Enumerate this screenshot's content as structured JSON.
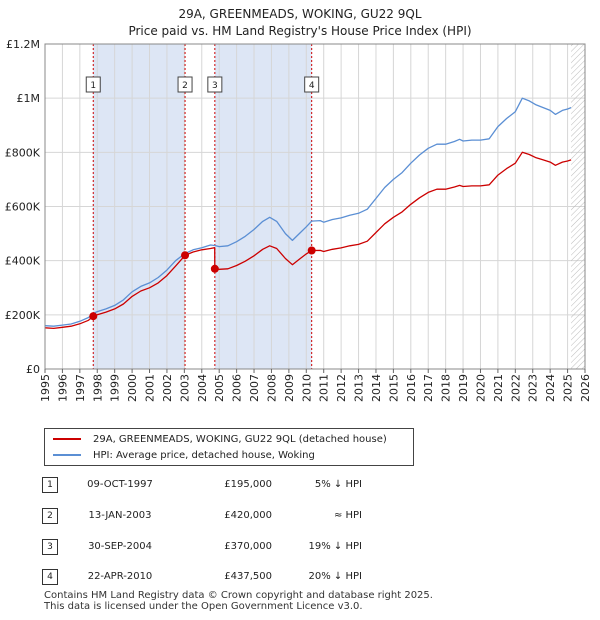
{
  "title_line1": "29A, GREENMEADS, WOKING, GU22 9QL",
  "title_line2": "Price paid vs. HM Land Registry's House Price Index (HPI)",
  "colors": {
    "property": "#cc0000",
    "hpi": "#5b8fd4",
    "shade": "#dde6f5",
    "marker": "#cc0000"
  },
  "chart_data": {
    "type": "line",
    "ylim": [
      0,
      1200000
    ],
    "xlim": [
      1995.0,
      2026.0
    ],
    "y_ticks": [
      {
        "value": 0,
        "label": "£0"
      },
      {
        "value": 200000,
        "label": "£200K"
      },
      {
        "value": 400000,
        "label": "£400K"
      },
      {
        "value": 600000,
        "label": "£600K"
      },
      {
        "value": 800000,
        "label": "£800K"
      },
      {
        "value": 1000000,
        "label": "£1M"
      },
      {
        "value": 1200000,
        "label": "£1.2M"
      }
    ],
    "x_ticks": [
      "1995",
      "1996",
      "1997",
      "1998",
      "1999",
      "2000",
      "2001",
      "2002",
      "2003",
      "2004",
      "2005",
      "2006",
      "2007",
      "2008",
      "2009",
      "2010",
      "2011",
      "2012",
      "2013",
      "2014",
      "2015",
      "2016",
      "2017",
      "2018",
      "2019",
      "2020",
      "2021",
      "2022",
      "2023",
      "2024",
      "2025",
      "2026"
    ],
    "shaded_periods": [
      [
        1997.77,
        2003.04
      ],
      [
        2004.75,
        2010.31
      ]
    ],
    "forecast_start": 2025.2,
    "series": [
      {
        "name": "HPI: Average price, detached house, Woking",
        "points": [
          [
            1995.0,
            160000
          ],
          [
            1995.5,
            158000
          ],
          [
            1996.0,
            162000
          ],
          [
            1996.5,
            166000
          ],
          [
            1997.0,
            176000
          ],
          [
            1997.5,
            190000
          ],
          [
            1997.77,
            205000
          ],
          [
            1998.0,
            212000
          ],
          [
            1998.5,
            222000
          ],
          [
            1999.0,
            235000
          ],
          [
            1999.5,
            255000
          ],
          [
            2000.0,
            285000
          ],
          [
            2000.5,
            305000
          ],
          [
            2001.0,
            318000
          ],
          [
            2001.5,
            338000
          ],
          [
            2002.0,
            365000
          ],
          [
            2002.5,
            400000
          ],
          [
            2003.0,
            425000
          ],
          [
            2003.5,
            440000
          ],
          [
            2004.0,
            448000
          ],
          [
            2004.5,
            458000
          ],
          [
            2004.75,
            456000
          ],
          [
            2005.0,
            452000
          ],
          [
            2005.5,
            455000
          ],
          [
            2006.0,
            470000
          ],
          [
            2006.5,
            490000
          ],
          [
            2007.0,
            515000
          ],
          [
            2007.5,
            545000
          ],
          [
            2007.9,
            560000
          ],
          [
            2008.3,
            545000
          ],
          [
            2008.8,
            500000
          ],
          [
            2009.2,
            475000
          ],
          [
            2009.6,
            500000
          ],
          [
            2010.0,
            525000
          ],
          [
            2010.31,
            546000
          ],
          [
            2010.8,
            548000
          ],
          [
            2011.0,
            542000
          ],
          [
            2011.5,
            552000
          ],
          [
            2012.0,
            558000
          ],
          [
            2012.5,
            568000
          ],
          [
            2013.0,
            575000
          ],
          [
            2013.5,
            590000
          ],
          [
            2014.0,
            630000
          ],
          [
            2014.5,
            670000
          ],
          [
            2015.0,
            700000
          ],
          [
            2015.5,
            725000
          ],
          [
            2016.0,
            760000
          ],
          [
            2016.5,
            790000
          ],
          [
            2017.0,
            815000
          ],
          [
            2017.5,
            830000
          ],
          [
            2018.0,
            830000
          ],
          [
            2018.5,
            840000
          ],
          [
            2018.8,
            848000
          ],
          [
            2019.0,
            842000
          ],
          [
            2019.5,
            845000
          ],
          [
            2020.0,
            845000
          ],
          [
            2020.5,
            850000
          ],
          [
            2021.0,
            895000
          ],
          [
            2021.5,
            925000
          ],
          [
            2022.0,
            950000
          ],
          [
            2022.4,
            1000000
          ],
          [
            2022.8,
            990000
          ],
          [
            2023.2,
            975000
          ],
          [
            2023.6,
            965000
          ],
          [
            2024.0,
            955000
          ],
          [
            2024.3,
            940000
          ],
          [
            2024.7,
            955000
          ],
          [
            2025.0,
            960000
          ],
          [
            2025.2,
            965000
          ]
        ]
      },
      {
        "name": "29A, GREENMEADS, WOKING, GU22 9QL (detached house)",
        "points": [
          [
            1995.0,
            152000
          ],
          [
            1995.5,
            150000
          ],
          [
            1996.0,
            154000
          ],
          [
            1996.5,
            158000
          ],
          [
            1997.0,
            167000
          ],
          [
            1997.5,
            180000
          ],
          [
            1997.77,
            195000
          ],
          [
            1998.0,
            200000
          ],
          [
            1998.5,
            210000
          ],
          [
            1999.0,
            222000
          ],
          [
            1999.5,
            240000
          ],
          [
            2000.0,
            268000
          ],
          [
            2000.5,
            288000
          ],
          [
            2001.0,
            300000
          ],
          [
            2001.5,
            318000
          ],
          [
            2002.0,
            345000
          ],
          [
            2002.5,
            380000
          ],
          [
            2003.04,
            420000
          ],
          [
            2003.5,
            432000
          ],
          [
            2004.0,
            440000
          ],
          [
            2004.5,
            445000
          ],
          [
            2004.74,
            448000
          ],
          [
            2004.75,
            370000
          ],
          [
            2005.0,
            368000
          ],
          [
            2005.5,
            370000
          ],
          [
            2006.0,
            382000
          ],
          [
            2006.5,
            398000
          ],
          [
            2007.0,
            418000
          ],
          [
            2007.5,
            442000
          ],
          [
            2007.9,
            455000
          ],
          [
            2008.3,
            445000
          ],
          [
            2008.8,
            408000
          ],
          [
            2009.2,
            385000
          ],
          [
            2009.6,
            405000
          ],
          [
            2010.0,
            425000
          ],
          [
            2010.31,
            437500
          ],
          [
            2010.8,
            438000
          ],
          [
            2011.0,
            434000
          ],
          [
            2011.5,
            442000
          ],
          [
            2012.0,
            447000
          ],
          [
            2012.5,
            455000
          ],
          [
            2013.0,
            460000
          ],
          [
            2013.5,
            472000
          ],
          [
            2014.0,
            504000
          ],
          [
            2014.5,
            536000
          ],
          [
            2015.0,
            560000
          ],
          [
            2015.5,
            580000
          ],
          [
            2016.0,
            608000
          ],
          [
            2016.5,
            632000
          ],
          [
            2017.0,
            652000
          ],
          [
            2017.5,
            664000
          ],
          [
            2018.0,
            664000
          ],
          [
            2018.5,
            672000
          ],
          [
            2018.8,
            678000
          ],
          [
            2019.0,
            674000
          ],
          [
            2019.5,
            676000
          ],
          [
            2020.0,
            676000
          ],
          [
            2020.5,
            680000
          ],
          [
            2021.0,
            716000
          ],
          [
            2021.5,
            740000
          ],
          [
            2022.0,
            760000
          ],
          [
            2022.4,
            800000
          ],
          [
            2022.8,
            792000
          ],
          [
            2023.2,
            780000
          ],
          [
            2023.6,
            772000
          ],
          [
            2024.0,
            764000
          ],
          [
            2024.3,
            752000
          ],
          [
            2024.7,
            764000
          ],
          [
            2025.0,
            768000
          ],
          [
            2025.2,
            772000
          ]
        ]
      }
    ],
    "sales": [
      {
        "num": "1",
        "x": 1997.77,
        "price": 195000,
        "date": "09-OCT-1997",
        "price_label": "£195,000",
        "hpi": "5% ↓ HPI"
      },
      {
        "num": "2",
        "x": 2003.04,
        "price": 420000,
        "date": "13-JAN-2003",
        "price_label": "£420,000",
        "hpi": "≈ HPI"
      },
      {
        "num": "3",
        "x": 2004.75,
        "price": 370000,
        "date": "30-SEP-2004",
        "price_label": "£370,000",
        "hpi": "19% ↓ HPI"
      },
      {
        "num": "4",
        "x": 2010.31,
        "price": 437500,
        "date": "22-APR-2010",
        "price_label": "£437,500",
        "hpi": "20% ↓ HPI"
      }
    ]
  },
  "legend": {
    "property": "29A, GREENMEADS, WOKING, GU22 9QL (detached house)",
    "hpi": "HPI: Average price, detached house, Woking"
  },
  "footer": {
    "line1": "Contains HM Land Registry data © Crown copyright and database right 2025.",
    "line2": "This data is licensed under the Open Government Licence v3.0."
  }
}
